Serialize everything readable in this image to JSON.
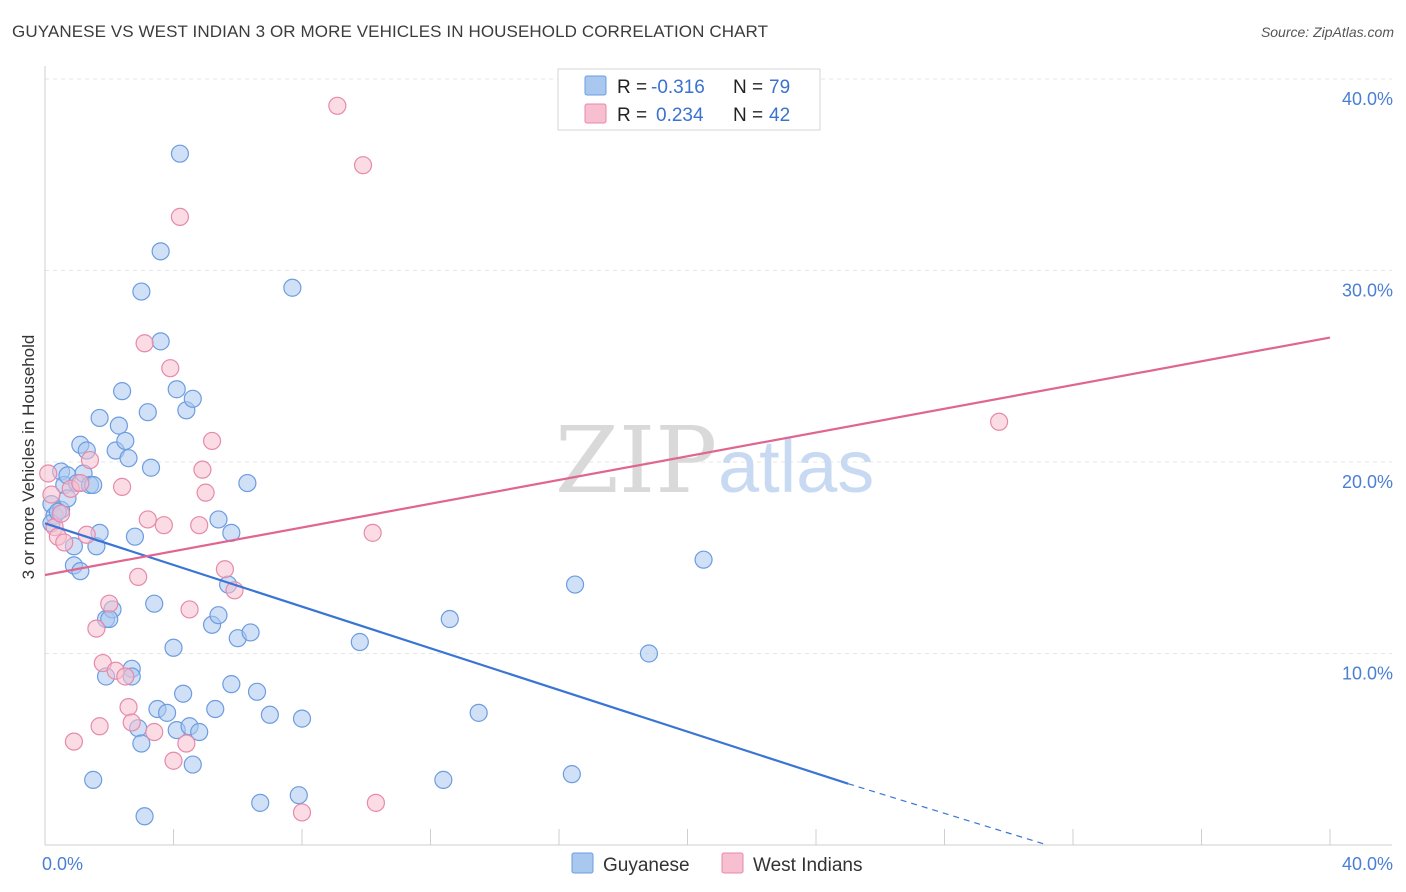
{
  "header": {
    "title": "GUYANESE VS WEST INDIAN 3 OR MORE VEHICLES IN HOUSEHOLD CORRELATION CHART",
    "source": "Source: ZipAtlas.com"
  },
  "watermark": {
    "zip": "ZIP",
    "atlas": "atlas"
  },
  "legend": {
    "rows": [
      {
        "r_label": "R =",
        "r_value": "-0.316",
        "n_label": "N =",
        "n_value": "79",
        "color": "#a9c8f0",
        "stroke": "#6d9ce0"
      },
      {
        "r_label": "R =",
        "r_value": "0.234",
        "n_label": "N =",
        "n_value": "42",
        "color": "#f7bfd0",
        "stroke": "#e68aaa"
      }
    ]
  },
  "bottom_legend": [
    {
      "label": "Guyanese",
      "color": "#a9c8f0",
      "stroke": "#6d9ce0"
    },
    {
      "label": "West Indians",
      "color": "#f7bfd0",
      "stroke": "#e68aaa"
    }
  ],
  "chart_data": {
    "type": "scatter",
    "title": "GUYANESE VS WEST INDIAN 3 OR MORE VEHICLES IN HOUSEHOLD CORRELATION CHART",
    "ylabel": "3 or more Vehicles in Household",
    "xlabel": "",
    "xlim": [
      0,
      40
    ],
    "ylim": [
      0,
      40
    ],
    "x_tick_labels": [
      "0.0%",
      "40.0%"
    ],
    "y_ticks": [
      10,
      20,
      30,
      40
    ],
    "y_tick_labels": [
      "10.0%",
      "20.0%",
      "30.0%",
      "40.0%"
    ],
    "grid": true,
    "legend_position": "top-center",
    "series": [
      {
        "name": "Guyanese",
        "color": "#6d9ce0",
        "fill": "#a9c8f0",
        "trend": {
          "x": [
            0,
            25.0
          ],
          "y": [
            16.8,
            3.2
          ],
          "dashed_to": [
            31.2,
            0.0
          ],
          "color": "#3a75d4"
        },
        "points": [
          [
            0.2,
            17.8
          ],
          [
            0.3,
            17.2
          ],
          [
            0.5,
            17.5
          ],
          [
            0.5,
            19.5
          ],
          [
            0.6,
            18.8
          ],
          [
            0.7,
            19.3
          ],
          [
            0.7,
            18.1
          ],
          [
            0.9,
            15.6
          ],
          [
            0.9,
            14.6
          ],
          [
            1.0,
            18.9
          ],
          [
            1.1,
            14.3
          ],
          [
            1.1,
            20.9
          ],
          [
            1.2,
            19.4
          ],
          [
            1.3,
            20.6
          ],
          [
            1.4,
            18.8
          ],
          [
            1.5,
            18.8
          ],
          [
            1.6,
            15.6
          ],
          [
            1.7,
            22.3
          ],
          [
            1.7,
            16.3
          ],
          [
            1.9,
            11.8
          ],
          [
            1.9,
            8.8
          ],
          [
            2.1,
            12.3
          ],
          [
            2.2,
            20.6
          ],
          [
            2.3,
            21.9
          ],
          [
            2.4,
            23.7
          ],
          [
            2.5,
            21.1
          ],
          [
            2.6,
            20.2
          ],
          [
            2.7,
            9.2
          ],
          [
            2.7,
            8.8
          ],
          [
            2.8,
            16.1
          ],
          [
            2.9,
            6.1
          ],
          [
            3.0,
            5.3
          ],
          [
            3.0,
            28.9
          ],
          [
            3.1,
            1.5
          ],
          [
            3.2,
            22.6
          ],
          [
            3.3,
            19.7
          ],
          [
            3.4,
            12.6
          ],
          [
            3.5,
            7.1
          ],
          [
            3.6,
            31.0
          ],
          [
            3.6,
            26.3
          ],
          [
            3.8,
            6.9
          ],
          [
            4.0,
            10.3
          ],
          [
            4.1,
            6.0
          ],
          [
            4.1,
            23.8
          ],
          [
            4.2,
            36.1
          ],
          [
            4.3,
            7.9
          ],
          [
            4.4,
            22.7
          ],
          [
            4.5,
            6.2
          ],
          [
            4.6,
            23.3
          ],
          [
            4.6,
            4.2
          ],
          [
            4.8,
            5.9
          ],
          [
            5.2,
            11.5
          ],
          [
            5.3,
            7.1
          ],
          [
            5.4,
            12.0
          ],
          [
            5.4,
            17.0
          ],
          [
            5.7,
            13.6
          ],
          [
            5.8,
            16.3
          ],
          [
            5.8,
            8.4
          ],
          [
            6.0,
            10.8
          ],
          [
            6.3,
            18.9
          ],
          [
            6.4,
            11.1
          ],
          [
            6.6,
            8.0
          ],
          [
            6.7,
            2.2
          ],
          [
            7.0,
            6.8
          ],
          [
            7.7,
            29.1
          ],
          [
            7.9,
            2.6
          ],
          [
            8.0,
            6.6
          ],
          [
            9.8,
            10.6
          ],
          [
            12.4,
            3.4
          ],
          [
            12.6,
            11.8
          ],
          [
            13.5,
            6.9
          ],
          [
            16.4,
            3.7
          ],
          [
            16.5,
            13.6
          ],
          [
            18.8,
            10.0
          ],
          [
            20.5,
            14.9
          ],
          [
            0.2,
            16.8
          ],
          [
            1.5,
            3.4
          ],
          [
            0.4,
            17.4
          ],
          [
            2.0,
            11.8
          ]
        ]
      },
      {
        "name": "West Indians",
        "color": "#e68aaa",
        "fill": "#f7bfd0",
        "trend": {
          "x": [
            0,
            40
          ],
          "y": [
            14.1,
            26.5
          ],
          "color": "#e0668f"
        },
        "points": [
          [
            0.1,
            19.4
          ],
          [
            0.2,
            18.3
          ],
          [
            0.3,
            16.6
          ],
          [
            0.4,
            16.1
          ],
          [
            0.5,
            17.3
          ],
          [
            0.6,
            15.8
          ],
          [
            0.8,
            18.6
          ],
          [
            0.9,
            5.4
          ],
          [
            1.1,
            18.9
          ],
          [
            1.3,
            16.2
          ],
          [
            1.4,
            20.1
          ],
          [
            1.6,
            11.3
          ],
          [
            1.7,
            6.2
          ],
          [
            1.8,
            9.5
          ],
          [
            2.0,
            12.6
          ],
          [
            2.2,
            9.1
          ],
          [
            2.4,
            18.7
          ],
          [
            2.5,
            8.8
          ],
          [
            2.6,
            7.2
          ],
          [
            2.7,
            6.4
          ],
          [
            2.9,
            14.0
          ],
          [
            3.1,
            26.2
          ],
          [
            3.2,
            17.0
          ],
          [
            3.4,
            5.9
          ],
          [
            3.7,
            16.7
          ],
          [
            3.9,
            24.9
          ],
          [
            4.0,
            4.4
          ],
          [
            4.2,
            32.8
          ],
          [
            4.4,
            5.3
          ],
          [
            4.5,
            12.3
          ],
          [
            4.8,
            16.7
          ],
          [
            4.9,
            19.6
          ],
          [
            5.0,
            18.4
          ],
          [
            5.2,
            21.1
          ],
          [
            5.6,
            14.4
          ],
          [
            5.9,
            13.3
          ],
          [
            8.0,
            1.7
          ],
          [
            9.1,
            38.6
          ],
          [
            9.9,
            35.5
          ],
          [
            10.2,
            16.3
          ],
          [
            10.3,
            2.2
          ],
          [
            29.7,
            22.1
          ]
        ]
      }
    ]
  }
}
